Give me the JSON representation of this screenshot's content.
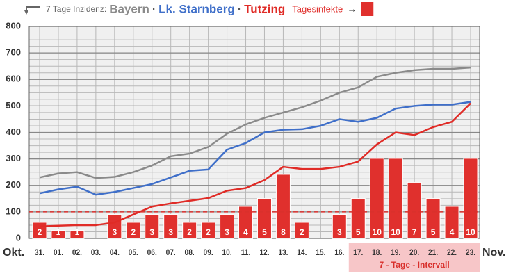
{
  "chart_data": {
    "type": "bar-line",
    "legend_title": "7 Tage Inzidenz:",
    "legend_separator": "·",
    "legend_arrow": "→",
    "x_start_label": "Okt.",
    "x_end_label": "Nov.",
    "categories": [
      "31.",
      "01.",
      "02.",
      "03.",
      "04.",
      "05.",
      "06.",
      "07.",
      "08.",
      "09.",
      "10.",
      "11.",
      "12.",
      "13.",
      "14.",
      "15.",
      "16.",
      "17.",
      "18.",
      "19.",
      "20.",
      "21.",
      "22.",
      "23."
    ],
    "ylim": [
      0,
      800
    ],
    "yticks": [
      0,
      100,
      200,
      300,
      400,
      500,
      600,
      700,
      800
    ],
    "minor_grid_step": 25,
    "grid": true,
    "y2lim": [
      0,
      26.5
    ],
    "reference_line": {
      "value": 100,
      "color": "#d9302c"
    },
    "highlight": {
      "label": "7 - Tage - Intervall",
      "from": "17.",
      "to": "23.",
      "color": "#f7c6c8"
    },
    "series": [
      {
        "name": "Bayern",
        "type": "line",
        "color": "#8a8a8a",
        "values": [
          230,
          245,
          250,
          228,
          232,
          250,
          275,
          310,
          320,
          345,
          395,
          430,
          455,
          475,
          495,
          520,
          550,
          570,
          610,
          625,
          635,
          640,
          640,
          645
        ]
      },
      {
        "name": "Lk. Starnberg",
        "type": "line",
        "color": "#3f6fc9",
        "values": [
          170,
          185,
          195,
          165,
          175,
          190,
          205,
          230,
          255,
          260,
          335,
          360,
          400,
          410,
          412,
          425,
          450,
          440,
          455,
          490,
          500,
          505,
          505,
          515
        ]
      },
      {
        "name": "Tutzing",
        "type": "line",
        "color": "#e02b26",
        "values": [
          45,
          48,
          50,
          50,
          60,
          90,
          120,
          132,
          142,
          152,
          180,
          190,
          220,
          270,
          262,
          262,
          270,
          290,
          355,
          400,
          390,
          420,
          440,
          510
        ]
      },
      {
        "name": "Tagesinfekte",
        "type": "bar",
        "axis": "y2",
        "color": "#e0302d",
        "values": [
          2,
          1,
          1,
          null,
          3,
          2,
          3,
          3,
          2,
          2,
          3,
          4,
          5,
          8,
          2,
          null,
          3,
          5,
          10,
          10,
          7,
          5,
          4,
          10
        ]
      }
    ]
  }
}
